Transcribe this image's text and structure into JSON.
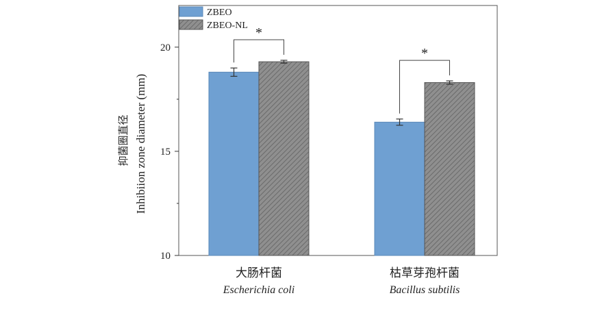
{
  "chart_data": {
    "type": "bar",
    "ylabel_cn": "抑菌圈直径",
    "ylabel": "Inhibiion zone diameter (mm)",
    "ylim": [
      10,
      22
    ],
    "yticks": [
      "10",
      "15",
      "20"
    ],
    "categories": [
      {
        "cn": "大肠杆菌",
        "latin": "Escherichia coli"
      },
      {
        "cn": "枯草芽孢杆菌",
        "latin": "Bacillus subtilis"
      }
    ],
    "series": [
      {
        "name": "ZBEO",
        "values": [
          18.8,
          16.4
        ],
        "errors": [
          0.2,
          0.15
        ],
        "color": "#6fa0d2",
        "pattern": "solid"
      },
      {
        "name": "ZBEO-NL",
        "values": [
          19.3,
          18.3
        ],
        "errors": [
          0.07,
          0.08
        ],
        "color": "#8a8a8a",
        "pattern": "hatched"
      }
    ],
    "significance": [
      "*",
      "*"
    ],
    "legend_position": "top-left"
  }
}
